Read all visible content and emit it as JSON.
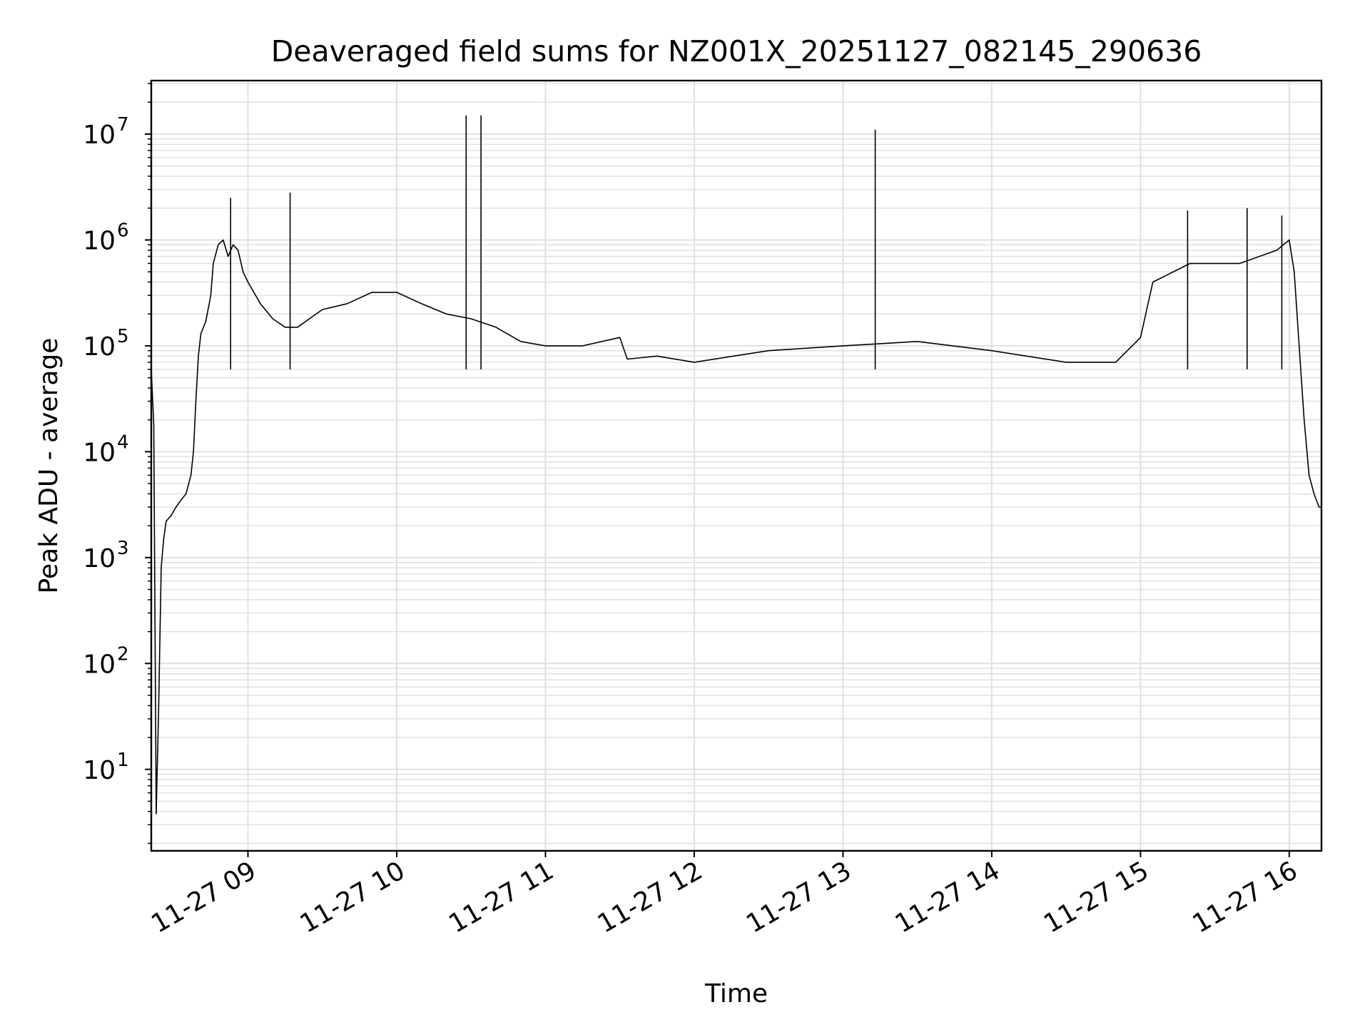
{
  "chart_data": {
    "type": "line",
    "title": "Deaveraged field sums for NZ001X_20251127_082145_290636",
    "xlabel": "Time",
    "ylabel": "Peak ADU - average",
    "yscale": "log",
    "grid": true,
    "line_color": "#000000",
    "grid_color": "#e0e0e0",
    "xlim": [
      "2025-11-27 08:21",
      "2025-11-27 16:13"
    ],
    "ylim": [
      1.7,
      32000000
    ],
    "x_ticks": [
      {
        "t": "2025-11-27 09:00",
        "label": "11-27 09"
      },
      {
        "t": "2025-11-27 10:00",
        "label": "11-27 10"
      },
      {
        "t": "2025-11-27 11:00",
        "label": "11-27 11"
      },
      {
        "t": "2025-11-27 12:00",
        "label": "11-27 12"
      },
      {
        "t": "2025-11-27 13:00",
        "label": "11-27 13"
      },
      {
        "t": "2025-11-27 14:00",
        "label": "11-27 14"
      },
      {
        "t": "2025-11-27 15:00",
        "label": "11-27 15"
      },
      {
        "t": "2025-11-27 16:00",
        "label": "11-27 16"
      }
    ],
    "y_ticks": [
      {
        "value": 10,
        "base": "10",
        "exp": "1"
      },
      {
        "value": 100,
        "base": "10",
        "exp": "2"
      },
      {
        "value": 1000,
        "base": "10",
        "exp": "3"
      },
      {
        "value": 10000,
        "base": "10",
        "exp": "4"
      },
      {
        "value": 100000,
        "base": "10",
        "exp": "5"
      },
      {
        "value": 1000000,
        "base": "10",
        "exp": "6"
      },
      {
        "value": 10000000,
        "base": "10",
        "exp": "7"
      }
    ],
    "series": [
      {
        "points": [
          [
            "2025-11-27 08:21",
            60000
          ],
          [
            "2025-11-27 08:22",
            18000
          ],
          [
            "2025-11-27 08:23",
            3.8
          ],
          [
            "2025-11-27 08:24",
            40
          ],
          [
            "2025-11-27 08:25",
            800
          ],
          [
            "2025-11-27 08:26",
            1500
          ],
          [
            "2025-11-27 08:27",
            2200
          ],
          [
            "2025-11-27 08:29",
            2500
          ],
          [
            "2025-11-27 08:31",
            3000
          ],
          [
            "2025-11-27 08:33",
            3500
          ],
          [
            "2025-11-27 08:35",
            4000
          ],
          [
            "2025-11-27 08:37",
            6000
          ],
          [
            "2025-11-27 08:38",
            10000
          ],
          [
            "2025-11-27 08:39",
            30000
          ],
          [
            "2025-11-27 08:40",
            80000
          ],
          [
            "2025-11-27 08:41",
            130000
          ],
          [
            "2025-11-27 08:43",
            170000
          ],
          [
            "2025-11-27 08:45",
            300000
          ],
          [
            "2025-11-27 08:46",
            600000
          ],
          [
            "2025-11-27 08:48",
            900000
          ],
          [
            "2025-11-27 08:50",
            1000000
          ],
          [
            "2025-11-27 08:52",
            700000
          ],
          [
            "2025-11-27 08:54",
            900000
          ],
          [
            "2025-11-27 08:56",
            800000
          ],
          [
            "2025-11-27 08:58",
            500000
          ],
          [
            "2025-11-27 09:00",
            400000
          ],
          [
            "2025-11-27 09:05",
            250000
          ],
          [
            "2025-11-27 09:10",
            180000
          ],
          [
            "2025-11-27 09:15",
            150000
          ],
          [
            "2025-11-27 09:20",
            150000
          ],
          [
            "2025-11-27 09:30",
            220000
          ],
          [
            "2025-11-27 09:40",
            250000
          ],
          [
            "2025-11-27 09:50",
            320000
          ],
          [
            "2025-11-27 10:00",
            320000
          ],
          [
            "2025-11-27 10:10",
            250000
          ],
          [
            "2025-11-27 10:20",
            200000
          ],
          [
            "2025-11-27 10:30",
            180000
          ],
          [
            "2025-11-27 10:40",
            150000
          ],
          [
            "2025-11-27 10:50",
            110000
          ],
          [
            "2025-11-27 11:00",
            100000
          ],
          [
            "2025-11-27 11:15",
            100000
          ],
          [
            "2025-11-27 11:30",
            120000
          ],
          [
            "2025-11-27 11:33",
            75000
          ],
          [
            "2025-11-27 11:45",
            80000
          ],
          [
            "2025-11-27 12:00",
            70000
          ],
          [
            "2025-11-27 12:30",
            90000
          ],
          [
            "2025-11-27 13:00",
            100000
          ],
          [
            "2025-11-27 13:30",
            110000
          ],
          [
            "2025-11-27 14:00",
            90000
          ],
          [
            "2025-11-27 14:30",
            70000
          ],
          [
            "2025-11-27 14:50",
            70000
          ],
          [
            "2025-11-27 15:00",
            120000
          ],
          [
            "2025-11-27 15:05",
            400000
          ],
          [
            "2025-11-27 15:20",
            600000
          ],
          [
            "2025-11-27 15:40",
            600000
          ],
          [
            "2025-11-27 15:55",
            800000
          ],
          [
            "2025-11-27 16:00",
            1000000
          ],
          [
            "2025-11-27 16:02",
            500000
          ],
          [
            "2025-11-27 16:04",
            100000
          ],
          [
            "2025-11-27 16:06",
            20000
          ],
          [
            "2025-11-27 16:08",
            6000
          ],
          [
            "2025-11-27 16:10",
            4000
          ],
          [
            "2025-11-27 16:12",
            3000
          ],
          [
            "2025-11-27 16:13",
            3000
          ]
        ],
        "spikes": [
          [
            "2025-11-27 08:53",
            2500000
          ],
          [
            "2025-11-27 09:17",
            2800000
          ],
          [
            "2025-11-27 10:28",
            15000000
          ],
          [
            "2025-11-27 10:34",
            15000000
          ],
          [
            "2025-11-27 13:13",
            11000000
          ],
          [
            "2025-11-27 15:19",
            1900000
          ],
          [
            "2025-11-27 15:43",
            2000000
          ],
          [
            "2025-11-27 15:57",
            1700000
          ]
        ]
      }
    ]
  }
}
